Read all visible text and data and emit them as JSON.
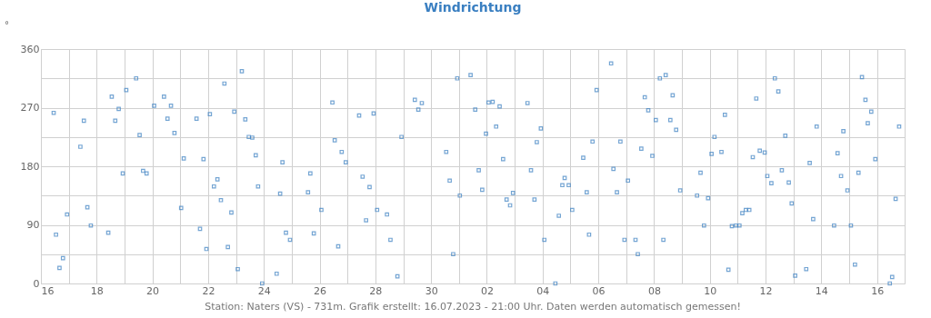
{
  "chart_data": {
    "type": "scatter",
    "title": "Windrichtung",
    "ylabel": "°",
    "annotations": [
      "Station: Naters (VS) - 731m. Grafik erstellt: 16.07.2023 - 21:00 Uhr. Daten werden automatisch gemessen!"
    ],
    "marker": "square",
    "grid": true,
    "xlim": [
      "2023-06-16T00:00",
      "2023-07-16T23:45"
    ],
    "xticks": [
      {
        "value": "2023-06-16",
        "label": "16"
      },
      {
        "value": "2023-06-17",
        "label": null
      },
      {
        "value": "2023-06-18",
        "label": "18"
      },
      {
        "value": "2023-06-19",
        "label": null
      },
      {
        "value": "2023-06-20",
        "label": "20"
      },
      {
        "value": "2023-06-21",
        "label": null
      },
      {
        "value": "2023-06-22",
        "label": "22"
      },
      {
        "value": "2023-06-23",
        "label": null
      },
      {
        "value": "2023-06-24",
        "label": "24"
      },
      {
        "value": "2023-06-25",
        "label": null
      },
      {
        "value": "2023-06-26",
        "label": "26"
      },
      {
        "value": "2023-06-27",
        "label": null
      },
      {
        "value": "2023-06-28",
        "label": "28"
      },
      {
        "value": "2023-06-29",
        "label": null
      },
      {
        "value": "2023-06-30",
        "label": "30"
      },
      {
        "value": "2023-07-01",
        "label": null
      },
      {
        "value": "2023-07-02",
        "label": "02"
      },
      {
        "value": "2023-07-03",
        "label": null
      },
      {
        "value": "2023-07-04",
        "label": "04"
      },
      {
        "value": "2023-07-05",
        "label": null
      },
      {
        "value": "2023-07-06",
        "label": "06"
      },
      {
        "value": "2023-07-07",
        "label": null
      },
      {
        "value": "2023-07-08",
        "label": "08"
      },
      {
        "value": "2023-07-09",
        "label": null
      },
      {
        "value": "2023-07-10",
        "label": "10"
      },
      {
        "value": "2023-07-11",
        "label": null
      },
      {
        "value": "2023-07-12",
        "label": "12"
      },
      {
        "value": "2023-07-13",
        "label": null
      },
      {
        "value": "2023-07-14",
        "label": "14"
      },
      {
        "value": "2023-07-15",
        "label": null
      },
      {
        "value": "2023-07-16",
        "label": "16"
      }
    ],
    "ylim": [
      0,
      360
    ],
    "yticks": [
      0,
      {
        "value": 45,
        "label": null
      },
      90,
      {
        "value": 135,
        "label": null
      },
      180,
      {
        "value": 225,
        "label": null
      },
      270,
      {
        "value": 315,
        "label": null
      },
      360
    ],
    "series": [
      {
        "color": "#3a7fc1",
        "x": [
          "2023-06-16T11:00",
          "2023-06-16T13:00",
          "2023-06-16T16:00",
          "2023-06-16T19:00",
          "2023-06-16T22:30",
          "2023-06-17T10:00",
          "2023-06-17T13:00",
          "2023-06-17T16:00",
          "2023-06-17T19:00",
          "2023-06-18T10:00",
          "2023-06-18T13:00",
          "2023-06-18T16:00",
          "2023-06-18T19:00",
          "2023-06-18T22:30",
          "2023-06-19T01:30",
          "2023-06-19T10:00",
          "2023-06-19T13:00",
          "2023-06-19T16:00",
          "2023-06-19T19:00",
          "2023-06-20T01:30",
          "2023-06-20T10:00",
          "2023-06-20T13:00",
          "2023-06-20T16:00",
          "2023-06-20T19:00",
          "2023-06-21T00:45",
          "2023-06-21T03:00",
          "2023-06-21T14:00",
          "2023-06-21T17:00",
          "2023-06-21T20:00",
          "2023-06-21T22:30",
          "2023-06-22T01:30",
          "2023-06-22T05:00",
          "2023-06-22T08:00",
          "2023-06-22T11:00",
          "2023-06-22T14:00",
          "2023-06-22T17:00",
          "2023-06-22T20:00",
          "2023-06-22T22:30",
          "2023-06-23T01:30",
          "2023-06-23T05:00",
          "2023-06-23T08:00",
          "2023-06-23T11:00",
          "2023-06-23T14:00",
          "2023-06-23T17:00",
          "2023-06-23T19:00",
          "2023-06-23T22:30",
          "2023-06-24T11:00",
          "2023-06-24T14:00",
          "2023-06-24T16:00",
          "2023-06-24T19:00",
          "2023-06-24T22:30",
          "2023-06-25T14:00",
          "2023-06-25T16:00",
          "2023-06-25T19:00",
          "2023-06-26T01:30",
          "2023-06-26T11:00",
          "2023-06-26T13:00",
          "2023-06-26T16:00",
          "2023-06-26T19:00",
          "2023-06-26T22:30",
          "2023-06-27T10:00",
          "2023-06-27T13:00",
          "2023-06-27T16:00",
          "2023-06-27T19:00",
          "2023-06-27T22:30",
          "2023-06-28T01:30",
          "2023-06-28T10:00",
          "2023-06-28T13:00",
          "2023-06-28T19:00",
          "2023-06-28T22:30",
          "2023-06-29T10:00",
          "2023-06-29T13:00",
          "2023-06-29T16:00",
          "2023-06-30T13:00",
          "2023-06-30T16:00",
          "2023-06-30T19:00",
          "2023-06-30T22:30",
          "2023-07-01T00:45",
          "2023-07-01T10:00",
          "2023-07-01T14:00",
          "2023-07-01T17:00",
          "2023-07-01T20:00",
          "2023-07-01T23:15",
          "2023-07-02T01:30",
          "2023-07-02T05:00",
          "2023-07-02T08:00",
          "2023-07-02T11:00",
          "2023-07-02T14:00",
          "2023-07-02T17:00",
          "2023-07-02T20:00",
          "2023-07-02T22:30",
          "2023-07-03T11:00",
          "2023-07-03T14:00",
          "2023-07-03T17:00",
          "2023-07-03T19:00",
          "2023-07-03T22:30",
          "2023-07-04T01:30",
          "2023-07-04T11:00",
          "2023-07-04T14:00",
          "2023-07-04T17:00",
          "2023-07-04T19:00",
          "2023-07-04T22:30",
          "2023-07-05T01:30",
          "2023-07-05T11:00",
          "2023-07-05T14:00",
          "2023-07-05T16:00",
          "2023-07-05T19:00",
          "2023-07-05T22:30",
          "2023-07-06T11:00",
          "2023-07-06T13:00",
          "2023-07-06T16:00",
          "2023-07-06T19:00",
          "2023-07-06T22:30",
          "2023-07-07T01:30",
          "2023-07-07T08:00",
          "2023-07-07T10:00",
          "2023-07-07T13:00",
          "2023-07-07T16:00",
          "2023-07-07T19:00",
          "2023-07-07T22:30",
          "2023-07-08T01:30",
          "2023-07-08T05:00",
          "2023-07-08T08:00",
          "2023-07-08T10:00",
          "2023-07-08T14:00",
          "2023-07-08T16:00",
          "2023-07-08T19:00",
          "2023-07-08T22:30",
          "2023-07-09T13:00",
          "2023-07-09T16:00",
          "2023-07-09T19:00",
          "2023-07-09T22:30",
          "2023-07-10T01:30",
          "2023-07-10T04:00",
          "2023-07-10T10:00",
          "2023-07-10T13:00",
          "2023-07-10T16:00",
          "2023-07-10T19:00",
          "2023-07-10T22:30",
          "2023-07-11T01:30",
          "2023-07-11T04:00",
          "2023-07-11T07:00",
          "2023-07-11T10:00",
          "2023-07-11T13:00",
          "2023-07-11T16:00",
          "2023-07-11T19:00",
          "2023-07-11T23:15",
          "2023-07-12T01:30",
          "2023-07-12T05:00",
          "2023-07-12T08:00",
          "2023-07-12T11:00",
          "2023-07-12T14:00",
          "2023-07-12T17:00",
          "2023-07-12T20:00",
          "2023-07-12T22:30",
          "2023-07-13T01:30",
          "2023-07-13T11:00",
          "2023-07-13T14:00",
          "2023-07-13T17:00",
          "2023-07-13T20:00",
          "2023-07-14T11:00",
          "2023-07-14T14:00",
          "2023-07-14T17:00",
          "2023-07-14T19:00",
          "2023-07-14T22:30",
          "2023-07-15T01:30",
          "2023-07-15T05:00",
          "2023-07-15T08:00",
          "2023-07-15T11:00",
          "2023-07-15T14:00",
          "2023-07-15T16:00",
          "2023-07-15T19:00",
          "2023-07-15T22:30",
          "2023-07-16T11:00",
          "2023-07-16T13:00",
          "2023-07-16T16:00",
          "2023-07-16T19:00"
        ],
        "values": [
          262,
          75,
          24,
          39,
          106,
          210,
          250,
          117,
          89,
          78,
          287,
          250,
          268,
          169,
          297,
          315,
          228,
          173,
          169,
          273,
          287,
          253,
          273,
          231,
          116,
          192,
          253,
          84,
          191,
          53,
          260,
          149,
          160,
          128,
          307,
          56,
          109,
          264,
          22,
          326,
          252,
          225,
          224,
          197,
          149,
          0,
          15,
          138,
          186,
          78,
          67,
          140,
          169,
          77,
          113,
          278,
          220,
          57,
          202,
          186,
          258,
          164,
          97,
          148,
          261,
          113,
          106,
          67,
          11,
          225,
          282,
          267,
          277,
          202,
          158,
          45,
          315,
          135,
          320,
          267,
          174,
          144,
          230,
          278,
          279,
          241,
          272,
          191,
          129,
          120,
          139,
          277,
          174,
          129,
          217,
          238,
          67,
          0,
          104,
          151,
          162,
          151,
          113,
          193,
          140,
          75,
          218,
          297,
          338,
          176,
          140,
          218,
          67,
          158,
          67,
          45,
          207,
          286,
          266,
          196,
          251,
          315,
          67,
          320,
          251,
          289,
          236,
          143,
          135,
          170,
          89,
          131,
          199,
          225,
          202,
          259,
          21,
          88,
          89,
          89,
          108,
          113,
          113,
          194,
          284,
          204,
          201,
          165,
          154,
          315,
          295,
          174,
          227,
          155,
          123,
          12,
          22,
          185,
          99,
          241,
          89,
          200,
          165,
          234,
          143,
          89,
          29,
          170,
          317,
          282,
          246,
          264,
          191,
          0,
          10,
          130,
          241
        ]
      }
    ]
  }
}
